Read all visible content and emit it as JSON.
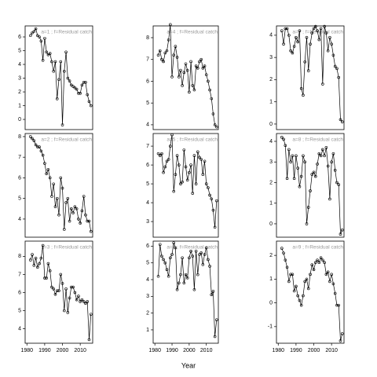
{
  "xlabel": "Year",
  "chart_data": [
    {
      "type": "line",
      "title": "a=1 ;  f=Residual catch",
      "x": [
        1982,
        1983,
        1984,
        1985,
        1986,
        1987,
        1988,
        1989,
        1990,
        1991,
        1992,
        1993,
        1994,
        1995,
        1996,
        1997,
        1998,
        1999,
        2000,
        2001,
        2002,
        2003,
        2004,
        2005,
        2006,
        2007,
        2008,
        2009,
        2010,
        2011,
        2012,
        2013,
        2014,
        2015,
        2016
      ],
      "values": [
        6.1,
        6.3,
        6.4,
        6.6,
        6.1,
        6.0,
        5.7,
        4.3,
        5.9,
        4.9,
        4.7,
        4.8,
        4.2,
        3.5,
        4.2,
        1.5,
        2.9,
        4.2,
        -0.4,
        3.5,
        4.9,
        3.0,
        2.8,
        2.5,
        2.4,
        2.3,
        2.2,
        1.9,
        1.9,
        2.5,
        2.7,
        2.7,
        1.8,
        1.3,
        1.0
      ],
      "xlim": [
        1979,
        2017
      ],
      "ylim": [
        -0.74,
        6.8
      ],
      "yticks": [
        0,
        1,
        2,
        3,
        4,
        5,
        6
      ]
    },
    {
      "type": "line",
      "title": "a=4 ;  f=Residual catch",
      "x": [
        1982,
        1983,
        1984,
        1985,
        1986,
        1987,
        1988,
        1989,
        1990,
        1991,
        1992,
        1993,
        1994,
        1995,
        1996,
        1997,
        1998,
        1999,
        2000,
        2001,
        2002,
        2003,
        2004,
        2005,
        2006,
        2007,
        2008,
        2009,
        2010,
        2011,
        2012,
        2013,
        2014,
        2015,
        2016
      ],
      "values": [
        7.2,
        7.4,
        7.0,
        6.9,
        7.3,
        7.4,
        7.9,
        8.6,
        6.2,
        7.2,
        7.6,
        7.1,
        6.2,
        6.5,
        5.8,
        6.4,
        6.8,
        6.5,
        5.5,
        6.9,
        5.8,
        5.6,
        6.7,
        6.6,
        6.9,
        7.0,
        6.6,
        6.7,
        6.3,
        6.0,
        5.6,
        5.2,
        4.5,
        4.0,
        3.9
      ],
      "xlim": [
        1979,
        2017
      ],
      "ylim": [
        3.78,
        8.54
      ],
      "yticks": [
        4,
        5,
        6,
        7,
        8
      ]
    },
    {
      "type": "line",
      "title": "a=7 ;  f=Residual catch",
      "x": [
        1982,
        1983,
        1984,
        1985,
        1986,
        1987,
        1988,
        1989,
        1990,
        1991,
        1992,
        1993,
        1994,
        1995,
        1996,
        1997,
        1998,
        1999,
        2000,
        2001,
        2002,
        2003,
        2004,
        2005,
        2006,
        2007,
        2008,
        2009,
        2010,
        2011,
        2012,
        2013,
        2014,
        2015,
        2016
      ],
      "values": [
        4.2,
        3.6,
        4.3,
        4.3,
        4.0,
        3.3,
        3.2,
        3.5,
        3.9,
        3.7,
        4.2,
        1.6,
        1.3,
        2.8,
        3.9,
        2.4,
        3.6,
        4.1,
        4.3,
        4.4,
        4.2,
        3.8,
        4.3,
        1.8,
        4.4,
        4.1,
        3.3,
        3.9,
        3.6,
        3.1,
        2.6,
        2.5,
        2.1,
        0.2,
        0.1
      ],
      "xlim": [
        1979,
        2017
      ],
      "ylim": [
        -0.25,
        4.42
      ],
      "yticks": [
        0,
        1,
        2,
        3,
        4
      ]
    },
    {
      "type": "line",
      "title": "a=2 ;  f=Residual catch",
      "x": [
        1982,
        1983,
        1984,
        1985,
        1986,
        1987,
        1988,
        1989,
        1990,
        1991,
        1992,
        1993,
        1994,
        1995,
        1996,
        1997,
        1998,
        1999,
        2000,
        2001,
        2002,
        2003,
        2004,
        2005,
        2006,
        2007,
        2008,
        2009,
        2010,
        2011,
        2012,
        2013,
        2014,
        2015,
        2016
      ],
      "values": [
        8.0,
        7.9,
        7.8,
        7.6,
        7.5,
        7.5,
        7.3,
        7.1,
        6.7,
        6.2,
        6.4,
        6.0,
        5.1,
        5.7,
        4.6,
        5.0,
        4.2,
        6.0,
        5.5,
        3.5,
        4.8,
        5.0,
        3.9,
        4.5,
        4.3,
        4.6,
        4.5,
        4.0,
        3.8,
        4.4,
        5.1,
        4.2,
        3.9,
        3.9,
        3.4
      ],
      "xlim": [
        1979,
        2017
      ],
      "ylim": [
        3.12,
        8.15
      ],
      "yticks": [
        4,
        5,
        6,
        7,
        8
      ]
    },
    {
      "type": "line",
      "title": "a=5 ;  f=Residual catch",
      "x": [
        1982,
        1983,
        1984,
        1985,
        1986,
        1987,
        1988,
        1989,
        1990,
        1991,
        1992,
        1993,
        1994,
        1995,
        1996,
        1997,
        1998,
        1999,
        2000,
        2001,
        2002,
        2003,
        2004,
        2005,
        2006,
        2007,
        2008,
        2009,
        2010,
        2011,
        2012,
        2013,
        2014,
        2015,
        2016
      ],
      "values": [
        6.6,
        6.5,
        6.6,
        5.6,
        5.9,
        6.2,
        6.3,
        7.0,
        7.6,
        4.6,
        5.5,
        6.5,
        6.0,
        5.0,
        5.1,
        6.8,
        5.9,
        5.2,
        5.6,
        6.0,
        4.5,
        6.5,
        5.0,
        6.7,
        6.4,
        6.3,
        5.5,
        6.2,
        5.0,
        4.8,
        4.4,
        4.2,
        3.6,
        2.7,
        4.1
      ],
      "xlim": [
        1979,
        2017
      ],
      "ylim": [
        2.17,
        7.67
      ],
      "yticks": [
        3,
        4,
        5,
        6,
        7
      ]
    },
    {
      "type": "line",
      "title": "a=8 ;  f=Residual catch",
      "x": [
        1982,
        1983,
        1984,
        1985,
        1986,
        1987,
        1988,
        1989,
        1990,
        1991,
        1992,
        1993,
        1994,
        1995,
        1996,
        1997,
        1998,
        1999,
        2000,
        2001,
        2002,
        2003,
        2004,
        2005,
        2006,
        2007,
        2008,
        2009,
        2010,
        2011,
        2012,
        2013,
        2014,
        2015,
        2016
      ],
      "values": [
        4.2,
        4.1,
        3.8,
        2.2,
        3.6,
        3.0,
        3.3,
        2.2,
        3.3,
        2.7,
        1.8,
        2.3,
        3.3,
        3.0,
        0.0,
        0.8,
        1.6,
        2.4,
        2.5,
        2.3,
        2.9,
        3.4,
        3.3,
        3.6,
        3.3,
        3.7,
        2.8,
        1.2,
        3.0,
        3.4,
        2.6,
        2.0,
        1.9,
        -0.5,
        -0.3
      ],
      "xlim": [
        1979,
        2017
      ],
      "ylim": [
        -0.65,
        4.38
      ],
      "yticks": [
        0,
        1,
        2,
        3,
        4
      ]
    },
    {
      "type": "line",
      "title": "a=3 ;  f=Residual catch",
      "x": [
        1982,
        1983,
        1984,
        1985,
        1986,
        1987,
        1988,
        1989,
        1990,
        1991,
        1992,
        1993,
        1994,
        1995,
        1996,
        1997,
        1998,
        1999,
        2000,
        2001,
        2002,
        2003,
        2004,
        2005,
        2006,
        2007,
        2008,
        2009,
        2010,
        2011,
        2012,
        2013,
        2014,
        2015,
        2016
      ],
      "values": [
        7.8,
        8.1,
        7.5,
        7.9,
        7.4,
        7.6,
        7.9,
        8.6,
        6.8,
        6.8,
        7.6,
        7.2,
        6.3,
        6.2,
        5.9,
        6.1,
        6.1,
        7.0,
        6.5,
        5.0,
        6.2,
        4.9,
        5.7,
        6.3,
        6.3,
        6.0,
        5.6,
        5.8,
        5.5,
        5.6,
        5.5,
        5.4,
        5.5,
        3.4,
        4.8
      ],
      "xlim": [
        1979,
        2017
      ],
      "ylim": [
        3.2,
        8.84
      ],
      "yticks": [
        4,
        5,
        6,
        7,
        8
      ],
      "xticks": [
        1980,
        1990,
        2000,
        2010
      ]
    },
    {
      "type": "line",
      "title": "a=6 ;  f=Residual catch",
      "x": [
        1982,
        1983,
        1984,
        1985,
        1986,
        1987,
        1988,
        1989,
        1990,
        1991,
        1992,
        1993,
        1994,
        1995,
        1996,
        1997,
        1998,
        1999,
        2000,
        2001,
        2002,
        2003,
        2004,
        2005,
        2006,
        2007,
        2008,
        2009,
        2010,
        2011,
        2012,
        2013,
        2014,
        2015,
        2016
      ],
      "values": [
        4.2,
        6.1,
        5.4,
        5.2,
        5.0,
        4.6,
        4.2,
        5.3,
        5.5,
        6.2,
        5.9,
        3.4,
        3.8,
        4.3,
        5.3,
        3.8,
        4.3,
        4.1,
        5.3,
        5.7,
        5.4,
        3.4,
        5.7,
        4.3,
        5.5,
        5.6,
        4.9,
        5.5,
        5.9,
        5.2,
        4.8,
        3.1,
        3.3,
        0.6,
        1.6
      ],
      "xlim": [
        1979,
        2017
      ],
      "ylim": [
        0.2,
        6.3
      ],
      "yticks": [
        1,
        2,
        3,
        4,
        5,
        6
      ],
      "xticks": [
        1980,
        1990,
        2000,
        2010
      ]
    },
    {
      "type": "line",
      "title": "a=9 ;  f=Residual catch",
      "x": [
        1982,
        1983,
        1984,
        1985,
        1986,
        1987,
        1988,
        1989,
        1990,
        1991,
        1992,
        1993,
        1994,
        1995,
        1996,
        1997,
        1998,
        1999,
        2000,
        2001,
        2002,
        2003,
        2004,
        2005,
        2006,
        2007,
        2008,
        2009,
        2010,
        2011,
        2012,
        2013,
        2014,
        2015,
        2016
      ],
      "values": [
        2.3,
        2.1,
        1.8,
        1.5,
        0.9,
        1.2,
        1.2,
        0.5,
        0.7,
        0.3,
        0.1,
        -0.1,
        0.3,
        0.9,
        1.0,
        0.6,
        1.2,
        1.6,
        1.4,
        1.7,
        1.8,
        1.7,
        1.9,
        1.8,
        1.7,
        1.2,
        1.3,
        0.9,
        1.2,
        0.8,
        0.4,
        -0.1,
        -0.1,
        -1.6,
        -1.3
      ],
      "xlim": [
        1979,
        2017
      ],
      "ylim": [
        -1.7,
        2.6
      ],
      "yticks": [
        -1,
        0,
        1,
        2
      ],
      "xticks": [
        1980,
        1990,
        2000,
        2010
      ]
    }
  ]
}
